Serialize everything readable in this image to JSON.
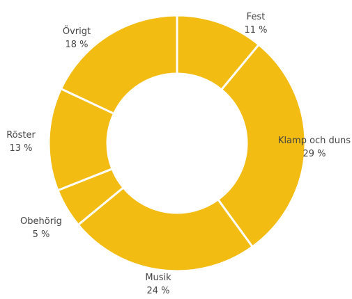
{
  "chart_data": {
    "type": "pie",
    "donut": true,
    "start_angle_deg": 0,
    "direction": "clockwise",
    "color": "#F2BC13",
    "separator_color": "#FFFFFF",
    "label_color": "#444444",
    "slices": [
      {
        "label": "Fest",
        "value": 11,
        "value_text": "11 %"
      },
      {
        "label": "Klamp och duns",
        "value": 29,
        "value_text": "29 %"
      },
      {
        "label": "Musik",
        "value": 24,
        "value_text": "24 %"
      },
      {
        "label": "Obehörig",
        "value": 5,
        "value_text": "5 %"
      },
      {
        "label": "Röster",
        "value": 13,
        "value_text": "13 %"
      },
      {
        "label": "Övrigt",
        "value": 18,
        "value_text": "18 %"
      }
    ]
  }
}
